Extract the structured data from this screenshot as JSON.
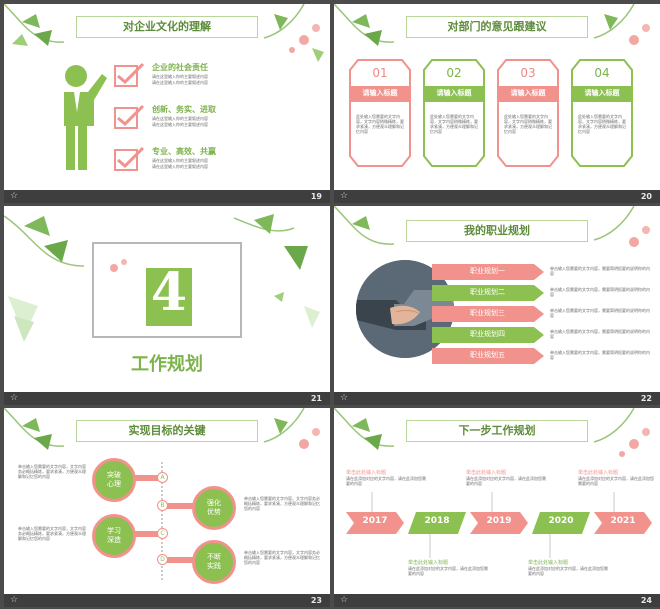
{
  "colors": {
    "green": "#8cc152",
    "pink": "#f1928c",
    "dark_green": "#5d8c3a",
    "background": "#4b4b4b"
  },
  "slides": {
    "s19": {
      "number": "19",
      "title": "对企业文化的理解",
      "items": [
        {
          "heading": "企业的社会责任",
          "text1": "请在这里输入你的主要叙述内容",
          "text2": "请在这里输入你的主要叙述内容"
        },
        {
          "heading": "创新、务实、进取",
          "text1": "请在这里输入你的主要叙述内容",
          "text2": "请在这里输入你的主要叙述内容"
        },
        {
          "heading": "专业、高效、共赢",
          "text1": "请在这里输入你的主要叙述内容",
          "text2": "请在这里输入你的主要叙述内容"
        }
      ]
    },
    "s20": {
      "number": "20",
      "title": "对部门的意见跟建议",
      "cards": [
        {
          "num": "01",
          "label": "请输入标题",
          "desc": "此处输入您需要的文字内容，文字内容稍微精练，要求紧凑，方便观众理解和记忆内容"
        },
        {
          "num": "02",
          "label": "请输入标题",
          "desc": "此处输入您需要的文字内容，文字内容稍微精练，要求紧凑，方便观众理解和记忆内容"
        },
        {
          "num": "03",
          "label": "请输入标题",
          "desc": "此处输入您需要的文字内容，文字内容稍微精练，要求紧凑，方便观众理解和记忆内容"
        },
        {
          "num": "04",
          "label": "请输入标题",
          "desc": "此处输入您需要的文字内容，文字内容稍微精练，要求紧凑，方便观众理解和记忆内容"
        }
      ]
    },
    "s21": {
      "number": "21",
      "big_num": "4",
      "title": "工作规划"
    },
    "s22": {
      "number": "22",
      "title": "我的职业规划",
      "plans": [
        {
          "label": "职业规划一",
          "desc": "单击输入您需要的文字内容，需要简明扼要的说明你的内容"
        },
        {
          "label": "职业规划二",
          "desc": "单击输入您需要的文字内容，需要简明扼要的说明你的内容"
        },
        {
          "label": "职业规划三",
          "desc": "单击输入您需要的文字内容，需要简明扼要的说明你的内容"
        },
        {
          "label": "职业规划四",
          "desc": "单击输入您需要的文字内容，需要简明扼要的说明你的内容"
        },
        {
          "label": "职业规划五",
          "desc": "单击输入您需要的文字内容，需要简明扼要的说明你的内容"
        }
      ]
    },
    "s23": {
      "number": "23",
      "title": "实现目标的关键",
      "circles": [
        {
          "label": "突破\n心理"
        },
        {
          "label": "学习\n深造"
        },
        {
          "label": "强化\n优势"
        },
        {
          "label": "不断\n实践"
        }
      ],
      "letters": [
        "A",
        "B",
        "C",
        "D"
      ],
      "left_texts": [
        "单击输入您需要的文字内容，文字内容务必概括精炼，要求紧凑，方便观众理解和记忆您的内容",
        "单击输入您需要的文字内容，文字内容务必概括精炼，要求紧凑，方便观众理解和记忆您的内容"
      ],
      "right_texts": [
        "单击输入您需要的文字内容，文字内容务必概括精炼，要求紧凑，方便观众理解和记忆您的内容",
        "单击输入您需要的文字内容，文字内容务必概括精炼，要求紧凑，方便观众理解和记忆您的内容"
      ]
    },
    "s24": {
      "number": "24",
      "title": "下一步工作规划",
      "years": [
        "2017",
        "2018",
        "2019",
        "2020",
        "2021"
      ],
      "notes_top": [
        {
          "head": "单击此处输入标题",
          "body": "请在此添加对应的文字内容，请在此添加您需要的内容"
        },
        {
          "head": "单击此处输入标题",
          "body": "请在此添加对应的文字内容，请在此添加您需要的内容"
        },
        {
          "head": "单击此处输入标题",
          "body": "请在此添加对应的文字内容，请在此添加您需要的内容"
        }
      ],
      "notes_bottom": [
        {
          "head": "单击此处输入标题",
          "body": "请在此添加对应的文字内容，请在此添加您需要的内容"
        },
        {
          "head": "单击此处输入标题",
          "body": "请在此添加对应的文字内容，请在此添加您需要的内容"
        }
      ]
    }
  }
}
